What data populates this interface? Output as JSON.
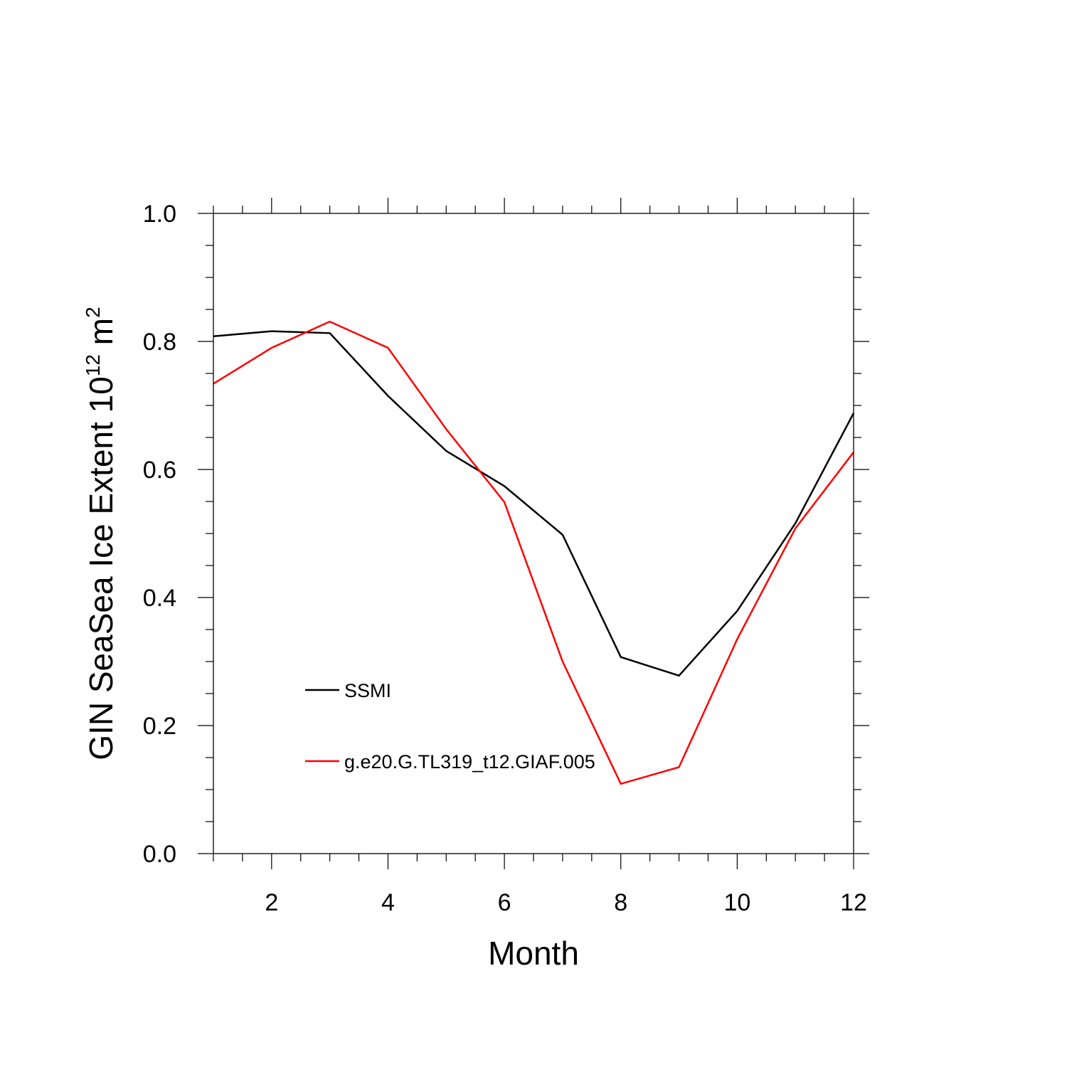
{
  "chart_data": {
    "type": "line",
    "xlabel": "Month",
    "ylabel": {
      "text": "GIN SeaSea Ice Extent 10",
      "sup1": "12",
      "mid": " m",
      "sup2": "2"
    },
    "xlim": [
      1,
      12
    ],
    "ylim": [
      0,
      1
    ],
    "x_ticks": [
      2,
      4,
      6,
      8,
      10,
      12
    ],
    "x_tick_labels": [
      "2",
      "4",
      "6",
      "8",
      "10",
      "12"
    ],
    "y_ticks": [
      0,
      0.2,
      0.4,
      0.6,
      0.8,
      1.0
    ],
    "y_tick_labels": [
      "0.0",
      "0.2",
      "0.4",
      "0.6",
      "0.8",
      "1.0"
    ],
    "grid": false,
    "legend_position": "lower-left",
    "x": [
      1,
      2,
      3,
      4,
      5,
      6,
      7,
      8,
      9,
      10,
      11,
      12
    ],
    "series": [
      {
        "name": "SSMI",
        "color": "#000000",
        "values": [
          0.808,
          0.816,
          0.813,
          0.715,
          0.629,
          0.574,
          0.498,
          0.307,
          0.278,
          0.379,
          0.516,
          0.688
        ]
      },
      {
        "name": "g.e20.G.TL319_t12.GIAF.005",
        "color": "#ff0000",
        "values": [
          0.734,
          0.79,
          0.831,
          0.79,
          0.663,
          0.549,
          0.3,
          0.109,
          0.135,
          0.335,
          0.508,
          0.627
        ]
      }
    ]
  }
}
